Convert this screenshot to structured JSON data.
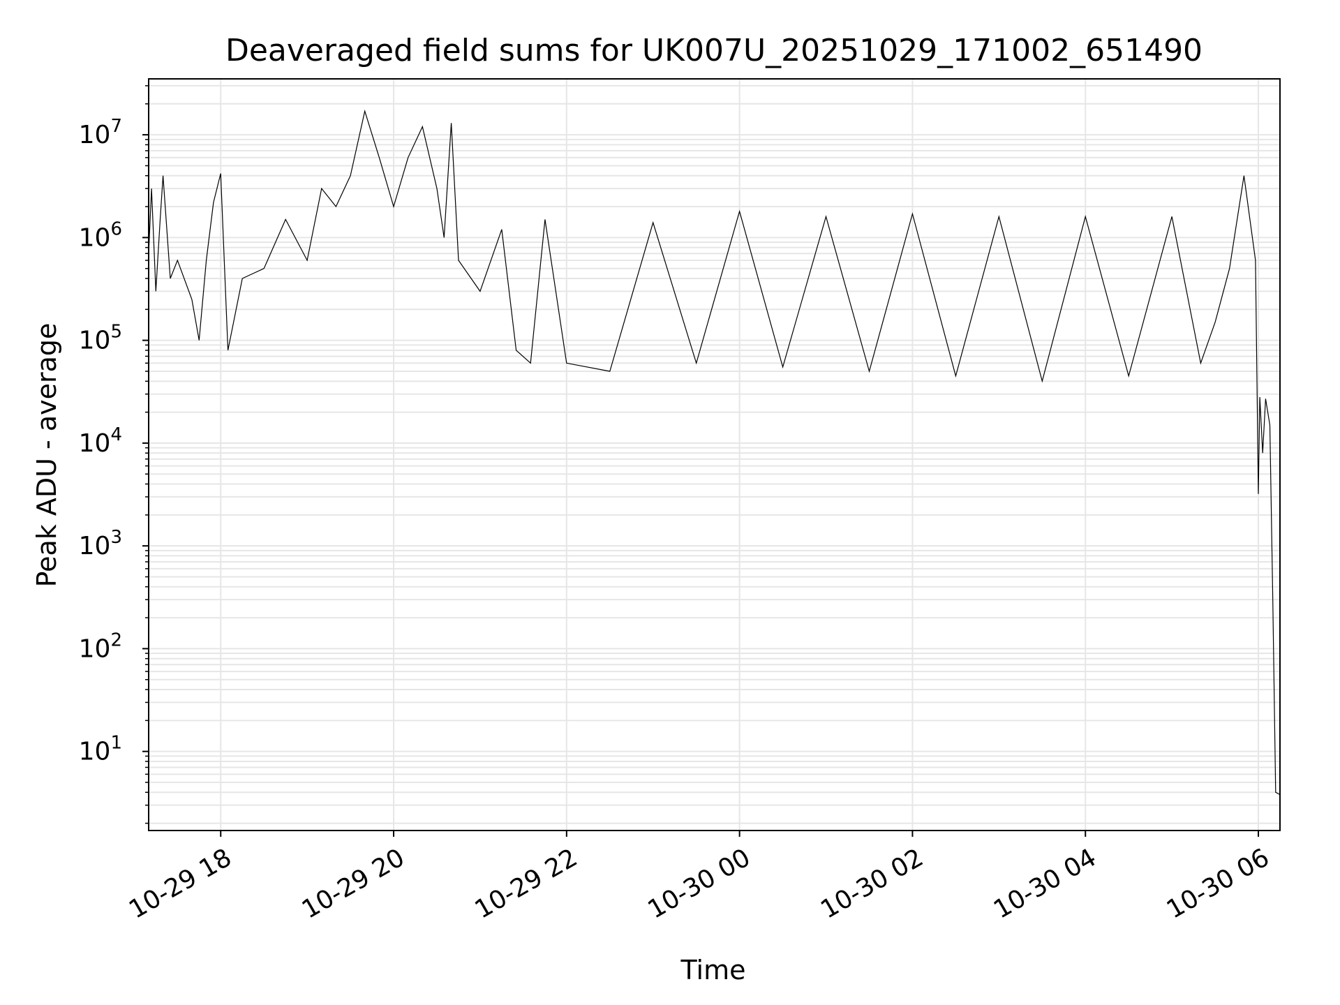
{
  "chart_data": {
    "type": "line",
    "title": "Deaveraged field sums for UK007U_20251029_171002_651490",
    "xlabel": "Time",
    "ylabel": "Peak ADU - average",
    "yscale": "log",
    "ylim": [
      1.7,
      35000000
    ],
    "xlim": [
      "2025-10-29 17:10",
      "2025-10-30 06:15"
    ],
    "grid": true,
    "line_color": "#000000",
    "grid_color": "#e6e6e6",
    "x_ticks": [
      {
        "t": "2025-10-29 18:00",
        "label": "10-29 18"
      },
      {
        "t": "2025-10-29 20:00",
        "label": "10-29 20"
      },
      {
        "t": "2025-10-29 22:00",
        "label": "10-29 22"
      },
      {
        "t": "2025-10-30 00:00",
        "label": "10-30 00"
      },
      {
        "t": "2025-10-30 02:00",
        "label": "10-30 02"
      },
      {
        "t": "2025-10-30 04:00",
        "label": "10-30 04"
      },
      {
        "t": "2025-10-30 06:00",
        "label": "10-30 06"
      }
    ],
    "y_ticks": [
      {
        "value": 10,
        "base": "10",
        "exp": "1"
      },
      {
        "value": 100,
        "base": "10",
        "exp": "2"
      },
      {
        "value": 1000,
        "base": "10",
        "exp": "3"
      },
      {
        "value": 10000,
        "base": "10",
        "exp": "4"
      },
      {
        "value": 100000,
        "base": "10",
        "exp": "5"
      },
      {
        "value": 1000000,
        "base": "10",
        "exp": "6"
      },
      {
        "value": 10000000,
        "base": "10",
        "exp": "7"
      }
    ],
    "series": [
      {
        "points": [
          [
            "2025-10-29 17:10",
            700000
          ],
          [
            "2025-10-29 17:12",
            3000000
          ],
          [
            "2025-10-29 17:15",
            300000
          ],
          [
            "2025-10-29 17:18",
            1500000
          ],
          [
            "2025-10-29 17:20",
            4000000
          ],
          [
            "2025-10-29 17:25",
            400000
          ],
          [
            "2025-10-29 17:30",
            600000
          ],
          [
            "2025-10-29 17:40",
            250000
          ],
          [
            "2025-10-29 17:45",
            100000
          ],
          [
            "2025-10-29 17:50",
            600000
          ],
          [
            "2025-10-29 17:55",
            2200000
          ],
          [
            "2025-10-29 18:00",
            4200000
          ],
          [
            "2025-10-29 18:05",
            80000
          ],
          [
            "2025-10-29 18:15",
            400000
          ],
          [
            "2025-10-29 18:30",
            500000
          ],
          [
            "2025-10-29 18:45",
            1500000
          ],
          [
            "2025-10-29 19:00",
            600000
          ],
          [
            "2025-10-29 19:10",
            3000000
          ],
          [
            "2025-10-29 19:20",
            2000000
          ],
          [
            "2025-10-29 19:30",
            4000000
          ],
          [
            "2025-10-29 19:40",
            17000000
          ],
          [
            "2025-10-29 19:50",
            6000000
          ],
          [
            "2025-10-29 20:00",
            2000000
          ],
          [
            "2025-10-29 20:10",
            6000000
          ],
          [
            "2025-10-29 20:20",
            12000000
          ],
          [
            "2025-10-29 20:30",
            3000000
          ],
          [
            "2025-10-29 20:35",
            1000000
          ],
          [
            "2025-10-29 20:40",
            13000000
          ],
          [
            "2025-10-29 20:45",
            600000
          ],
          [
            "2025-10-29 21:00",
            300000
          ],
          [
            "2025-10-29 21:15",
            1200000
          ],
          [
            "2025-10-29 21:25",
            80000
          ],
          [
            "2025-10-29 21:35",
            60000
          ],
          [
            "2025-10-29 21:45",
            1500000
          ],
          [
            "2025-10-29 22:00",
            60000
          ],
          [
            "2025-10-29 22:30",
            50000
          ],
          [
            "2025-10-29 23:00",
            1400000
          ],
          [
            "2025-10-29 23:30",
            60000
          ],
          [
            "2025-10-30 00:00",
            1800000
          ],
          [
            "2025-10-30 00:30",
            55000
          ],
          [
            "2025-10-30 01:00",
            1600000
          ],
          [
            "2025-10-30 01:30",
            50000
          ],
          [
            "2025-10-30 02:00",
            1700000
          ],
          [
            "2025-10-30 02:30",
            45000
          ],
          [
            "2025-10-30 03:00",
            1600000
          ],
          [
            "2025-10-30 03:30",
            40000
          ],
          [
            "2025-10-30 04:00",
            1600000
          ],
          [
            "2025-10-30 04:30",
            45000
          ],
          [
            "2025-10-30 05:00",
            1600000
          ],
          [
            "2025-10-30 05:20",
            60000
          ],
          [
            "2025-10-30 05:30",
            150000
          ],
          [
            "2025-10-30 05:40",
            500000
          ],
          [
            "2025-10-30 05:50",
            4000000
          ],
          [
            "2025-10-30 05:58",
            600000
          ],
          [
            "2025-10-30 06:00",
            3200
          ],
          [
            "2025-10-30 06:01",
            28000
          ],
          [
            "2025-10-30 06:03",
            8000
          ],
          [
            "2025-10-30 06:05",
            27000
          ],
          [
            "2025-10-30 06:08",
            15000
          ],
          [
            "2025-10-30 06:10",
            300
          ],
          [
            "2025-10-30 06:12",
            4
          ],
          [
            "2025-10-30 06:15",
            3.8
          ]
        ]
      }
    ]
  }
}
